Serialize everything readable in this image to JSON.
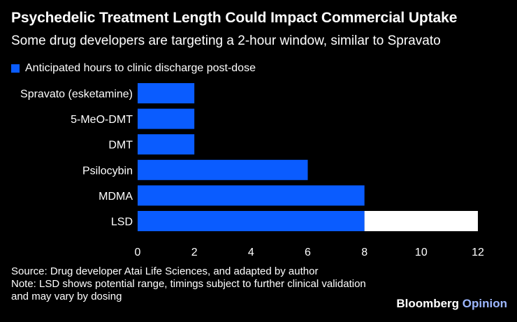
{
  "header": {
    "title": "Psychedelic Treatment Length Could Impact Commercial Uptake",
    "subtitle": "Some drug developers are targeting a 2-hour window, similar to Spravato"
  },
  "legend": {
    "label": "Anticipated hours to clinic discharge post-dose"
  },
  "chart_data": {
    "type": "bar",
    "orientation": "horizontal",
    "title": "Psychedelic Treatment Length Could Impact Commercial Uptake",
    "subtitle": "Some drug developers are targeting a 2-hour window, similar to Spravato",
    "categories": [
      "Spravato (esketamine)",
      "5-MeO-DMT",
      "DMT",
      "Psilocybin",
      "MDMA",
      "LSD"
    ],
    "series": [
      {
        "name": "Anticipated hours to clinic discharge post-dose",
        "color": "#0a5cff",
        "values": [
          2,
          2,
          2,
          6,
          8,
          8
        ]
      },
      {
        "name": "Potential range",
        "color": "#ffffff",
        "values": [
          0,
          0,
          0,
          0,
          0,
          4
        ]
      }
    ],
    "xlim": [
      0,
      12
    ],
    "xticks": [
      0,
      2,
      4,
      6,
      8,
      10,
      12
    ],
    "xlabel": "",
    "ylabel": "",
    "grid": false,
    "legend_position": "top-left"
  },
  "footer": {
    "source": "Source: Drug developer Atai Life Sciences, and adapted by author",
    "note_line1": "Note: LSD shows potential range, timings subject to further clinical validation",
    "note_line2": "and may vary by dosing"
  },
  "brand": {
    "name": "Bloomberg",
    "section": "Opinion"
  },
  "colors": {
    "background": "#000000",
    "primary_bar": "#0a5cff",
    "range_bar": "#ffffff",
    "text": "#ffffff"
  }
}
